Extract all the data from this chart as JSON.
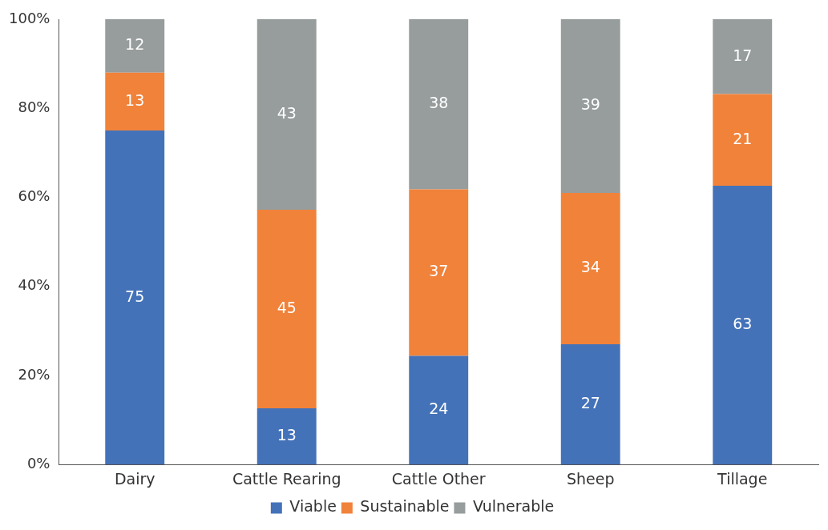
{
  "chart_data": {
    "type": "bar",
    "stacked": true,
    "categories": [
      "Dairy",
      "Cattle Rearing",
      "Cattle Other",
      "Sheep",
      "Tillage"
    ],
    "series": [
      {
        "name": "Viable",
        "color": "#4372b9",
        "values": [
          75,
          12.6,
          24.4,
          27,
          62.6
        ],
        "value_labels": [
          "75",
          "13",
          "24",
          "27",
          "63"
        ]
      },
      {
        "name": "Sustainable",
        "color": "#f0823a",
        "values": [
          13,
          44.6,
          37.4,
          34,
          20.6
        ],
        "value_labels": [
          "13",
          "45",
          "37",
          "34",
          "21"
        ]
      },
      {
        "name": "Vulnerable",
        "color": "#979c9c",
        "values": [
          12,
          42.8,
          38.2,
          39,
          16.8
        ],
        "value_labels": [
          "12",
          "43",
          "38",
          "39",
          "17"
        ]
      }
    ],
    "ylim": [
      0,
      100
    ],
    "yticks": [
      {
        "value": 0,
        "label": "0%"
      },
      {
        "value": 20,
        "label": "20%"
      },
      {
        "value": 40,
        "label": "40%"
      },
      {
        "value": 60,
        "label": "60%"
      },
      {
        "value": 80,
        "label": "80%"
      },
      {
        "value": 100,
        "label": "100%"
      }
    ],
    "grid": false,
    "legend": "bottom"
  }
}
